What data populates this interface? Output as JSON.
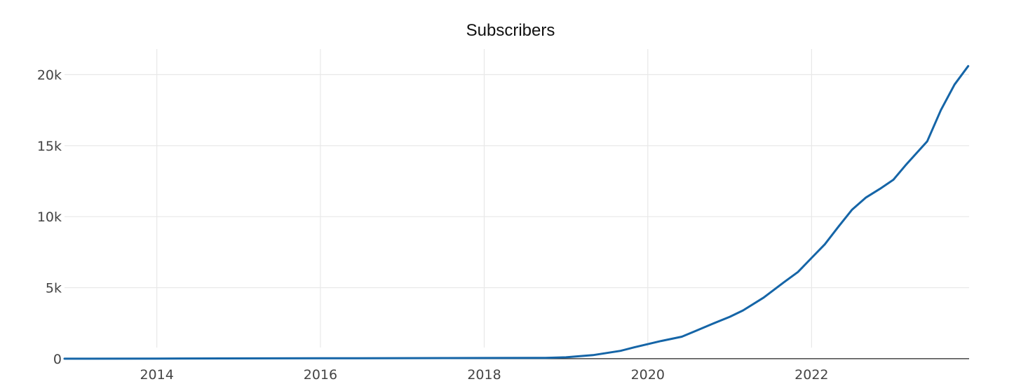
{
  "chart_data": {
    "type": "line",
    "title": "Subscribers",
    "xlabel": "",
    "ylabel": "",
    "x_axis": {
      "type": "date",
      "range": [
        "2012-11-15",
        "2023-12-05"
      ],
      "ticks": [
        "2014",
        "2016",
        "2018",
        "2020",
        "2022"
      ],
      "tick_values": [
        "2014-01-01",
        "2016-01-01",
        "2018-01-01",
        "2020-01-01",
        "2022-01-01"
      ],
      "grid": true
    },
    "y_axis": {
      "range": [
        -400,
        21800
      ],
      "ticks": [
        "0",
        "5k",
        "10k",
        "15k",
        "20k"
      ],
      "tick_values": [
        0,
        5000,
        10000,
        15000,
        20000
      ],
      "grid": true
    },
    "legend": "none",
    "series": [
      {
        "color": "#1565a7",
        "x": [
          "2012-11-15",
          "2014-01-01",
          "2016-01-01",
          "2017-01-01",
          "2018-01-01",
          "2018-10-01",
          "2019-01-01",
          "2019-05-01",
          "2019-09-01",
          "2019-11-01",
          "2020-03-01",
          "2020-06-01",
          "2020-08-01",
          "2020-10-15",
          "2021-01-01",
          "2021-03-01",
          "2021-06-01",
          "2021-09-01",
          "2021-11-01",
          "2022-01-01",
          "2022-03-01",
          "2022-05-01",
          "2022-07-01",
          "2022-09-01",
          "2022-11-01",
          "2023-01-01",
          "2023-03-01",
          "2023-06-01",
          "2023-08-01",
          "2023-10-01",
          "2023-12-01"
        ],
        "y": [
          0,
          10,
          30,
          40,
          50,
          60,
          100,
          250,
          550,
          800,
          1250,
          1550,
          1950,
          2450,
          2950,
          3400,
          4300,
          5400,
          6100,
          7100,
          8050,
          9300,
          10500,
          11350,
          11950,
          12600,
          13700,
          15300,
          17500,
          19300,
          20600
        ]
      }
    ]
  }
}
